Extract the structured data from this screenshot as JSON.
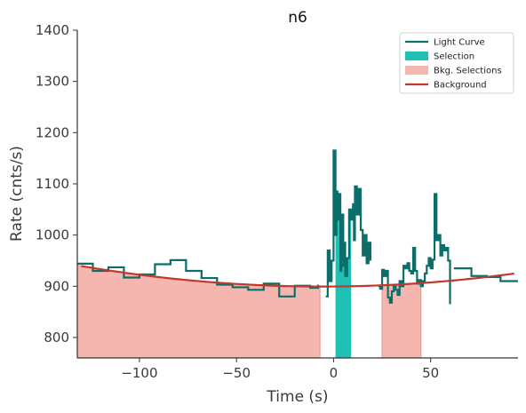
{
  "chart_data": {
    "type": "line",
    "title": "n6",
    "xlabel": "Time (s)",
    "ylabel": "Rate (cnts/s)",
    "xlim": [
      -132,
      95
    ],
    "ylim": [
      760,
      1400
    ],
    "x_ticks": [
      -100,
      -50,
      0,
      50
    ],
    "x_tick_labels": [
      "−100",
      "−50",
      "0",
      "50"
    ],
    "y_ticks": [
      800,
      900,
      1000,
      1100,
      1200,
      1300,
      1400
    ],
    "y_tick_labels": [
      "800",
      "900",
      "1000",
      "1100",
      "1200",
      "1300",
      "1400"
    ],
    "grid": false,
    "legend_position": "top-right",
    "colors": {
      "light_curve": "#0b6e69",
      "selection": "#20c0b5",
      "bkg_selections_fill": "#f4b6ae",
      "bkg_selections_edge": "#e8908a",
      "background": "#c0392b",
      "axis": "#333333"
    },
    "legend": [
      {
        "label": "Light Curve",
        "kind": "line",
        "color": "#0b6e69"
      },
      {
        "label": "Selection",
        "kind": "patch",
        "color": "#20c0b5"
      },
      {
        "label": "Bkg. Selections",
        "kind": "patch",
        "color": "#f4b6ae"
      },
      {
        "label": "Background",
        "kind": "line",
        "color": "#c0392b"
      }
    ],
    "selection_range": [
      1,
      9
    ],
    "bkg_selection_ranges": [
      [
        -132,
        -7
      ],
      [
        25,
        45
      ]
    ],
    "background_poly": [
      899.5,
      0.03,
      0.0026
    ],
    "light_curve_segments": [
      [
        [
          -132,
          944
        ],
        [
          -124,
          930
        ],
        [
          -116,
          937
        ],
        [
          -108,
          917
        ],
        [
          -100,
          923
        ],
        [
          -92,
          943
        ],
        [
          -84,
          951
        ],
        [
          -76,
          930
        ],
        [
          -68,
          916
        ],
        [
          -60,
          903
        ],
        [
          -52,
          898
        ],
        [
          -44,
          893
        ],
        [
          -36,
          905
        ],
        [
          -28,
          880
        ],
        [
          -20,
          901
        ],
        [
          -12,
          897
        ],
        [
          -8,
          903
        ]
      ],
      [
        [
          -4,
          880
        ],
        [
          -3,
          970
        ],
        [
          -2,
          910
        ],
        [
          -1,
          950
        ],
        [
          0,
          1165
        ],
        [
          1,
          1000
        ],
        [
          1.5,
          1085
        ],
        [
          2,
          1075
        ],
        [
          2.5,
          1030
        ],
        [
          3,
          1080
        ],
        [
          3.5,
          930
        ],
        [
          4,
          975
        ],
        [
          4.5,
          1040
        ],
        [
          5,
          940
        ],
        [
          5.5,
          985
        ],
        [
          6,
          920
        ],
        [
          7,
          955
        ],
        [
          8,
          1050
        ],
        [
          9,
          1030
        ],
        [
          10,
          1060
        ],
        [
          10.5,
          990
        ],
        [
          11,
          1095
        ],
        [
          12,
          1040
        ],
        [
          13,
          1090
        ],
        [
          14,
          1010
        ],
        [
          15,
          960
        ],
        [
          16,
          1000
        ],
        [
          17,
          945
        ],
        [
          18,
          985
        ],
        [
          19,
          950
        ]
      ],
      [
        [
          23,
          900
        ],
        [
          24,
          895
        ],
        [
          25,
          932
        ],
        [
          26,
          920
        ],
        [
          27,
          930
        ],
        [
          28,
          878
        ],
        [
          29,
          868
        ],
        [
          30,
          890
        ],
        [
          31,
          900
        ],
        [
          32,
          893
        ],
        [
          33,
          883
        ],
        [
          34,
          910
        ],
        [
          35,
          900
        ],
        [
          36,
          940
        ],
        [
          37,
          935
        ],
        [
          38,
          945
        ],
        [
          39,
          930
        ],
        [
          40,
          925
        ],
        [
          41,
          975
        ],
        [
          42,
          930
        ],
        [
          43,
          905
        ],
        [
          44,
          912
        ],
        [
          45,
          900
        ],
        [
          46,
          910
        ],
        [
          47,
          925
        ],
        [
          48,
          940
        ],
        [
          49,
          955
        ],
        [
          50,
          935
        ],
        [
          51,
          952
        ],
        [
          52,
          1080
        ],
        [
          53,
          990
        ],
        [
          54,
          1000
        ],
        [
          55,
          960
        ],
        [
          56,
          980
        ],
        [
          57,
          970
        ],
        [
          58,
          975
        ],
        [
          59,
          950
        ],
        [
          60,
          865
        ]
      ],
      [
        [
          62,
          935
        ],
        [
          71,
          920
        ],
        [
          79,
          918
        ],
        [
          86,
          910
        ],
        [
          95,
          910
        ]
      ]
    ]
  }
}
